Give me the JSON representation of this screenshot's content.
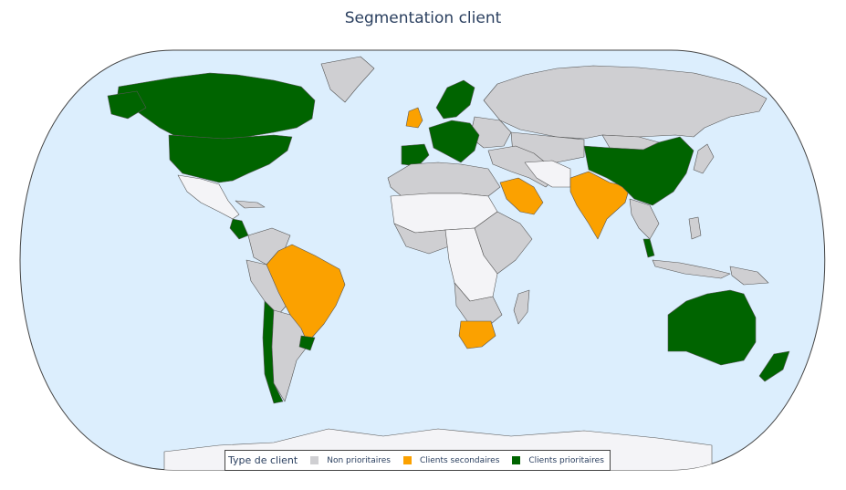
{
  "title": "Segmentation client",
  "colors": {
    "ocean": "#dceefd",
    "coast": "#7e5fa8",
    "border": "#555555",
    "no_data": "#f4f4f7",
    "non_prioritaires": "#cfcfd2",
    "clients_secondaires": "#fba100",
    "clients_prioritaires": "#006400"
  },
  "legend": {
    "title": "Type de client",
    "items": [
      {
        "label": "Non prioritaires",
        "color": "#cfcfd2"
      },
      {
        "label": "Clients secondaires",
        "color": "#fba100"
      },
      {
        "label": "Clients prioritaires",
        "color": "#006400"
      }
    ]
  },
  "chart_data": {
    "type": "choropleth",
    "title": "Segmentation client",
    "legend_title": "Type de client",
    "categories": [
      "Non prioritaires",
      "Clients secondaires",
      "Clients prioritaires"
    ]
  }
}
